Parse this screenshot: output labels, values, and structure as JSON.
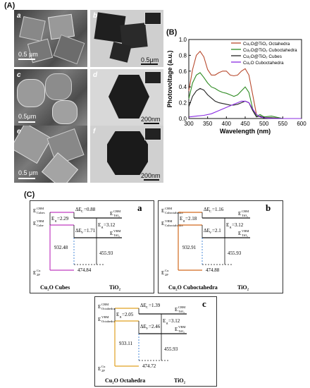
{
  "figure": {
    "label_A": "(A)",
    "label_B": "(B)",
    "label_C": "(C)"
  },
  "micrographs": [
    {
      "tag": "a",
      "scale": "0.5 μm"
    },
    {
      "tag": "b",
      "scale": "0.5μm"
    },
    {
      "tag": "c",
      "scale": "0.5μm"
    },
    {
      "tag": "d",
      "scale": "200nm"
    },
    {
      "tag": "e",
      "scale": "0.5 μm"
    },
    {
      "tag": "f",
      "scale": "200nm"
    }
  ],
  "chart_data": {
    "type": "line",
    "xlabel": "Wavelength (nm)",
    "ylabel": "Photovoltage (a.u.)",
    "xlim": [
      300,
      600
    ],
    "ylim": [
      0.0,
      1.0
    ],
    "xticks": [
      300,
      350,
      400,
      450,
      500,
      550,
      600
    ],
    "yticks": [
      "0.0",
      "0.2",
      "0.4",
      "0.6",
      "0.8",
      "1.0"
    ],
    "legend_position": "top-right",
    "series": [
      {
        "name": "Cu₂O@TiO₂ Octahedra",
        "color": "#b84a2e",
        "x": [
          300,
          310,
          320,
          330,
          340,
          350,
          360,
          370,
          380,
          390,
          400,
          410,
          420,
          430,
          440,
          450,
          460,
          470,
          480,
          490,
          500,
          520,
          550,
          600
        ],
        "y": [
          0.35,
          0.62,
          0.8,
          0.85,
          0.78,
          0.62,
          0.55,
          0.55,
          0.58,
          0.6,
          0.6,
          0.55,
          0.54,
          0.55,
          0.6,
          0.63,
          0.55,
          0.3,
          0.05,
          0.02,
          0.01,
          0.01,
          0.0,
          0.0
        ]
      },
      {
        "name": "Cu₂O@TiO₂ Cuboctahedra",
        "color": "#2e8b22",
        "x": [
          300,
          310,
          320,
          330,
          340,
          350,
          360,
          370,
          380,
          390,
          400,
          410,
          420,
          430,
          440,
          450,
          460,
          470,
          480,
          490,
          500,
          520,
          550,
          600
        ],
        "y": [
          0.25,
          0.45,
          0.55,
          0.58,
          0.52,
          0.45,
          0.4,
          0.38,
          0.35,
          0.33,
          0.32,
          0.3,
          0.28,
          0.3,
          0.35,
          0.4,
          0.33,
          0.12,
          0.03,
          0.05,
          0.02,
          0.03,
          0.0,
          0.0
        ]
      },
      {
        "name": "Cu₂O@TiO₂ Cubes",
        "color": "#222222",
        "x": [
          300,
          310,
          320,
          330,
          340,
          350,
          360,
          370,
          380,
          390,
          400,
          410,
          420,
          430,
          440,
          450,
          460,
          470,
          480,
          490,
          500,
          520,
          550,
          600
        ],
        "y": [
          0.15,
          0.28,
          0.35,
          0.38,
          0.36,
          0.3,
          0.26,
          0.22,
          0.2,
          0.19,
          0.18,
          0.17,
          0.17,
          0.18,
          0.2,
          0.22,
          0.2,
          0.1,
          0.02,
          0.03,
          0.01,
          0.01,
          0.0,
          0.0
        ]
      },
      {
        "name": "Cu₂O Cuboctahedra",
        "color": "#8a2be2",
        "x": [
          300,
          320,
          340,
          360,
          380,
          400,
          420,
          440,
          450,
          460,
          470,
          480,
          490,
          500,
          520,
          550,
          600
        ],
        "y": [
          0.02,
          0.03,
          0.04,
          0.06,
          0.1,
          0.14,
          0.18,
          0.22,
          0.22,
          0.2,
          0.12,
          0.05,
          0.02,
          0.01,
          0.0,
          0.0,
          0.0
        ]
      }
    ]
  },
  "diagrams": [
    {
      "tag": "a",
      "color": "#c03cc0",
      "cbm_top": "E",
      "cbm_sup": "CBM",
      "cbm_sub": "Cubes",
      "vbm_top": "E",
      "vbm_sup": "VBM",
      "vbm_sub": "Cube",
      "eg_left": "E",
      "eg_left_sub": "g",
      "eg_left_val": "=2.29",
      "dec": "ΔE",
      "dec_sub": "C",
      "dec_val": "=0.88",
      "dev": "ΔE",
      "dev_sub": "V",
      "dev_val": "=1.71",
      "eg_right": "E",
      "eg_right_sub": "g",
      "eg_right_val": "=3.12",
      "tio2_cbm": "E",
      "tio2_cbm_sup": "CBM",
      "tio2_cbm_sub": "TiO₂",
      "tio2_vbm": "E",
      "tio2_vbm_sup": "VBM",
      "tio2_vbm_sub": "TiO₂",
      "val_left": "932.48",
      "val_mid": "474.84",
      "val_right": "455.93",
      "core": "E",
      "core_sup": "Cu",
      "core_sub": "2P",
      "bottom_left": "Cu₂O Cubes",
      "bottom_right": "TiO₂"
    },
    {
      "tag": "b",
      "color": "#d2691e",
      "cbm_top": "E",
      "cbm_sup": "CBM",
      "cbm_sub": "Cuboctahedra",
      "vbm_top": "E",
      "vbm_sup": "VBM",
      "vbm_sub": "Cuboctahedra",
      "eg_left": "E",
      "eg_left_sub": "g",
      "eg_left_val": "=2.18",
      "dec": "ΔE",
      "dec_sub": "C",
      "dec_val": "=1.16",
      "dev": "ΔE",
      "dev_sub": "V",
      "dev_val": "=2.1",
      "eg_right": "E",
      "eg_right_sub": "g",
      "eg_right_val": "=3.12",
      "tio2_cbm": "E",
      "tio2_cbm_sup": "CBM",
      "tio2_cbm_sub": "TiO₂",
      "tio2_vbm": "E",
      "tio2_vbm_sup": "VBM",
      "tio2_vbm_sub": "TiO₂",
      "val_left": "932.91",
      "val_mid": "474.88",
      "val_right": "455.93",
      "core": "E",
      "core_sup": "Cu",
      "core_sub": "2P",
      "bottom_left": "Cu₂O Cuboctahedra",
      "bottom_right": "TiO₂"
    },
    {
      "tag": "c",
      "color": "#e0a020",
      "cbm_top": "E",
      "cbm_sup": "CBM",
      "cbm_sub": "Octahedra",
      "vbm_top": "E",
      "vbm_sup": "VBM",
      "vbm_sub": "Octahedra",
      "eg_left": "E",
      "eg_left_sub": "g",
      "eg_left_val": "=2.05",
      "dec": "ΔE",
      "dec_sub": "C",
      "dec_val": "=1.39",
      "dev": "ΔE",
      "dev_sub": "V",
      "dev_val": "=2.46",
      "eg_right": "E",
      "eg_right_sub": "g",
      "eg_right_val": "=3.12",
      "tio2_cbm": "E",
      "tio2_cbm_sup": "CBM",
      "tio2_cbm_sub": "TiO₂",
      "tio2_vbm": "E",
      "tio2_vbm_sup": "VBM",
      "tio2_vbm_sub": "TiO₂",
      "val_left": "933.11",
      "val_mid": "474.72",
      "val_right": "455.93",
      "core": "E",
      "core_sup": "Cu",
      "core_sub": "2P",
      "bottom_left": "Cu₂O Octahedra",
      "bottom_right": "TiO₂"
    }
  ]
}
